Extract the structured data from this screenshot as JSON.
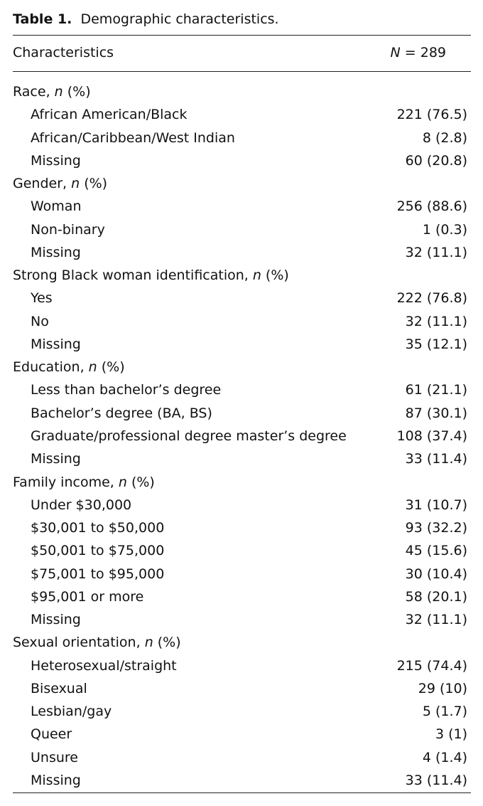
{
  "caption": {
    "label": "Table 1.",
    "title": "Demographic characteristics."
  },
  "header": {
    "col1": "Characteristics",
    "col2_italic": "N",
    "col2_rest": " = 289"
  },
  "groups": [
    {
      "prefix": "Race, ",
      "italic": "n",
      "suffix": " (%)",
      "items": [
        {
          "label": "African American/Black",
          "value": "221 (76.5)"
        },
        {
          "label": "African/Caribbean/West Indian",
          "value": "8 (2.8)"
        },
        {
          "label": "Missing",
          "value": "60 (20.8)"
        }
      ]
    },
    {
      "prefix": "Gender, ",
      "italic": "n",
      "suffix": " (%)",
      "items": [
        {
          "label": "Woman",
          "value": "256 (88.6)"
        },
        {
          "label": "Non-binary",
          "value": "1 (0.3)"
        },
        {
          "label": "Missing",
          "value": "32 (11.1)"
        }
      ]
    },
    {
      "prefix": "Strong Black woman identification, ",
      "italic": "n",
      "suffix": " (%)",
      "items": [
        {
          "label": "Yes",
          "value": "222 (76.8)"
        },
        {
          "label": "No",
          "value": "32 (11.1)"
        },
        {
          "label": "Missing",
          "value": "35 (12.1)"
        }
      ]
    },
    {
      "prefix": "Education, ",
      "italic": "n",
      "suffix": " (%)",
      "items": [
        {
          "label": "Less than bachelor’s degree",
          "value": "61 (21.1)"
        },
        {
          "label": "Bachelor’s degree (BA, BS)",
          "value": "87 (30.1)"
        },
        {
          "label": "Graduate/professional degree master’s degree",
          "value": "108 (37.4)"
        },
        {
          "label": "Missing",
          "value": "33 (11.4)"
        }
      ]
    },
    {
      "prefix": "Family income, ",
      "italic": "n",
      "suffix": " (%)",
      "items": [
        {
          "label": "Under $30,000",
          "value": "31 (10.7)"
        },
        {
          "label": "$30,001 to $50,000",
          "value": "93 (32.2)"
        },
        {
          "label": "$50,001 to $75,000",
          "value": "45 (15.6)"
        },
        {
          "label": "$75,001 to $95,000",
          "value": "30 (10.4)"
        },
        {
          "label": "$95,001 or more",
          "value": "58 (20.1)"
        },
        {
          "label": "Missing",
          "value": "32 (11.1)"
        }
      ]
    },
    {
      "prefix": "Sexual orientation, ",
      "italic": "n",
      "suffix": " (%)",
      "items": [
        {
          "label": "Heterosexual/straight",
          "value": "215 (74.4)"
        },
        {
          "label": "Bisexual",
          "value": "29 (10)"
        },
        {
          "label": "Lesbian/gay",
          "value": "5 (1.7)"
        },
        {
          "label": "Queer",
          "value": "3 (1)"
        },
        {
          "label": "Unsure",
          "value": "4 (1.4)"
        },
        {
          "label": "Missing",
          "value": "33 (11.4)"
        }
      ]
    }
  ]
}
